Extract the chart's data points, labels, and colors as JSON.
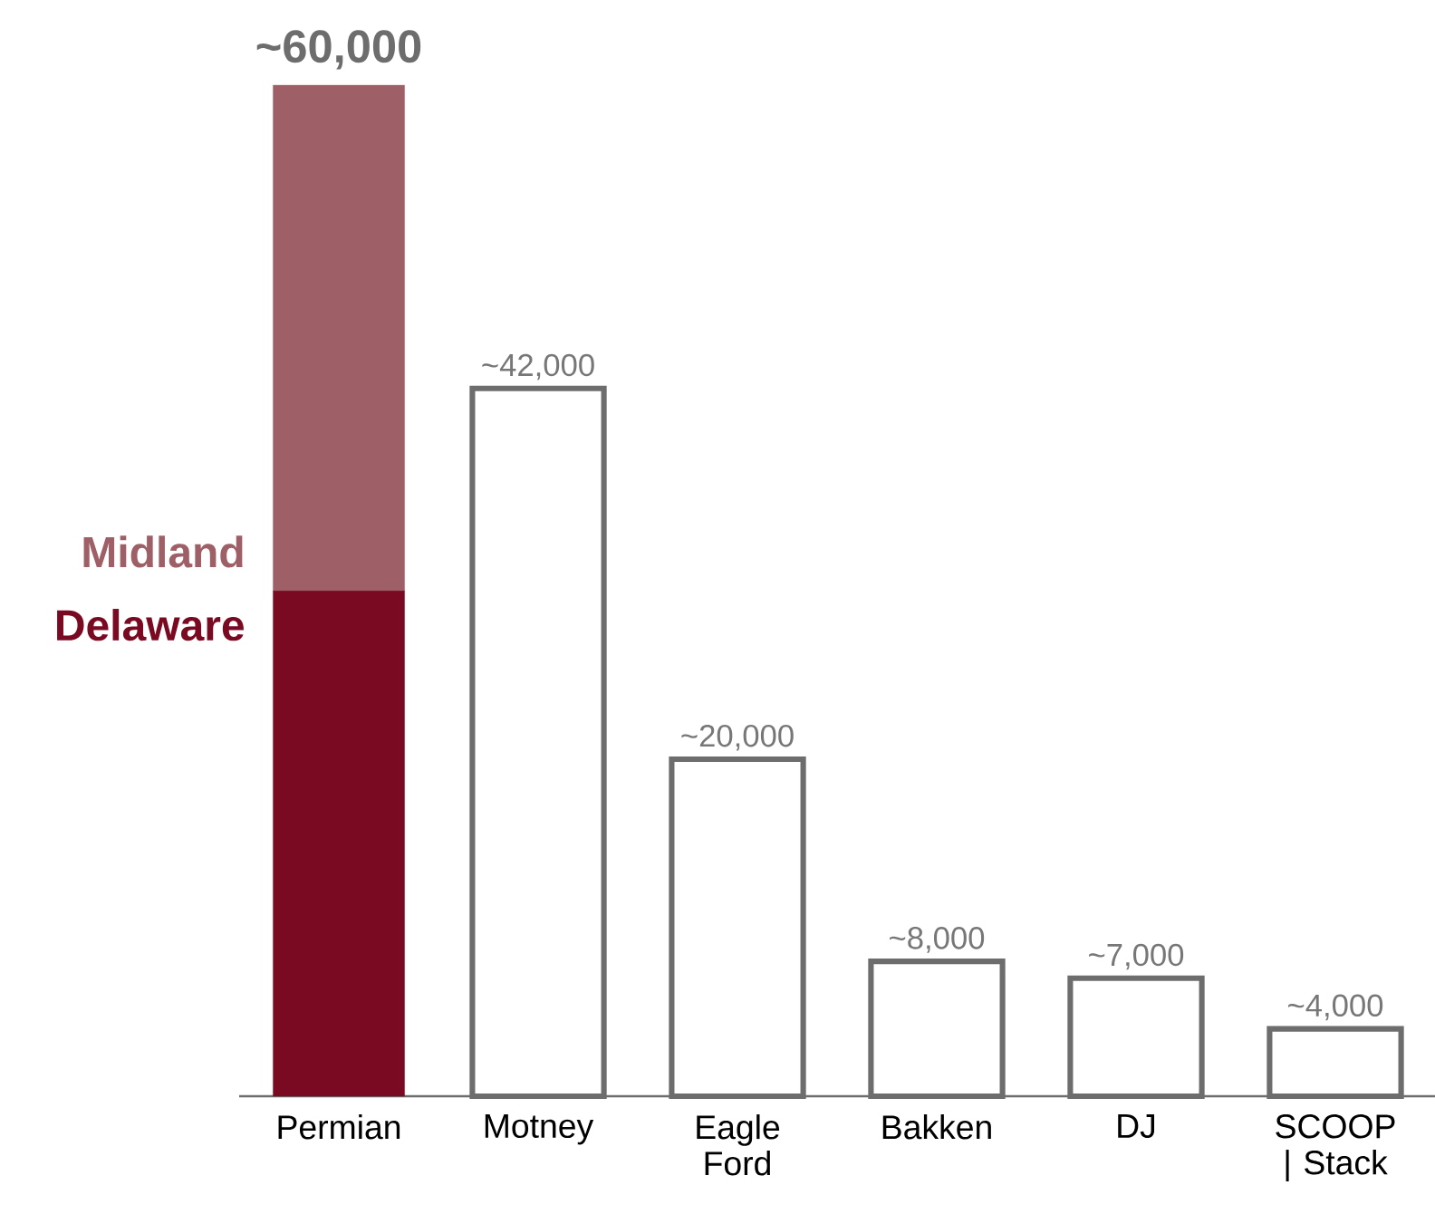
{
  "chart_data": {
    "type": "bar",
    "stacked": true,
    "categories": [
      "Permian",
      "Motney",
      "Eagle Ford",
      "Bakken",
      "DJ",
      "SCOOP | Stack"
    ],
    "series": [
      {
        "name": "Delaware",
        "color": "#7a0a22",
        "values": [
          30000,
          null,
          null,
          null,
          null,
          null
        ]
      },
      {
        "name": "Midland",
        "color": "#9e5f67",
        "values": [
          30000,
          null,
          null,
          null,
          null,
          null
        ]
      },
      {
        "color": "#ffffff",
        "values": [
          null,
          42000,
          20000,
          8000,
          7000,
          4000
        ],
        "value_labels": [
          null,
          "~42,000",
          "~20,000",
          "~8,000",
          "~7,000",
          "~4,000"
        ]
      }
    ],
    "totals": [
      "~60,000",
      null,
      null,
      null,
      null,
      null
    ]
  }
}
